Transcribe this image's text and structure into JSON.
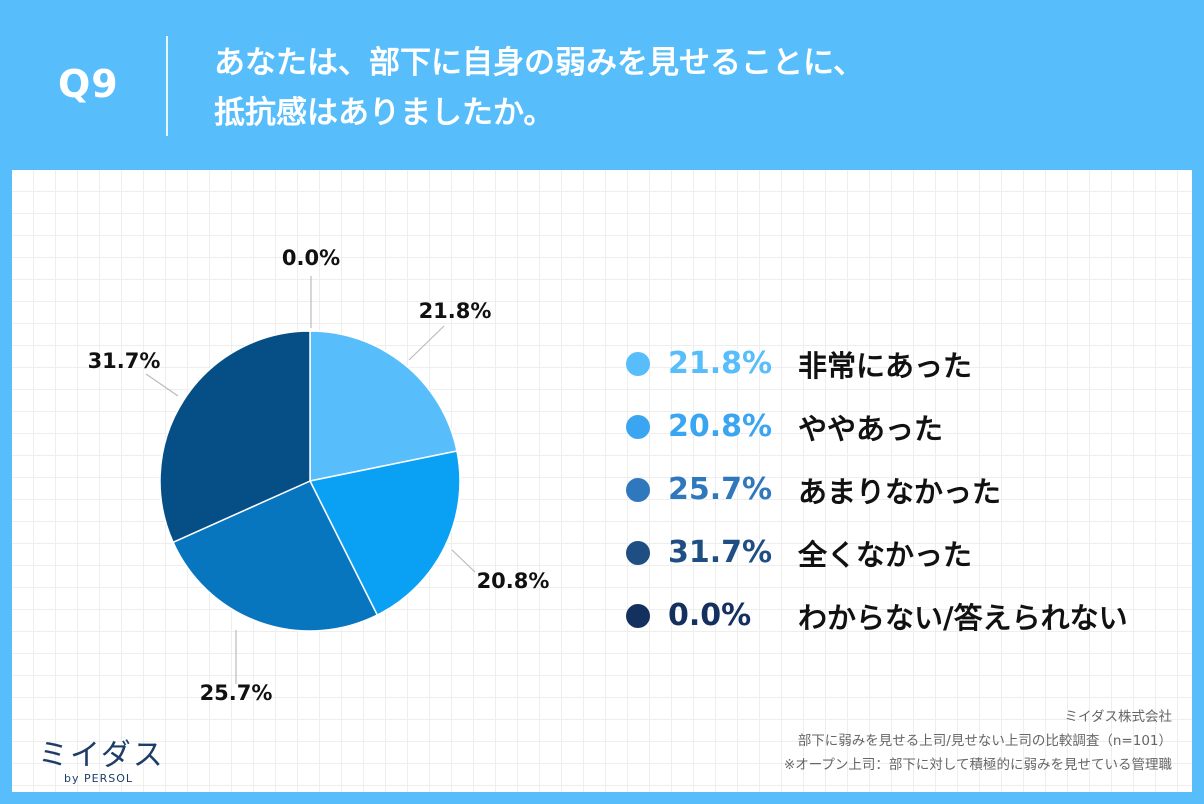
{
  "header": {
    "question_no": "Q9",
    "title_line1": "あなたは、部下に自身の弱みを見せることに、",
    "title_line2": "抵抗感はありましたか。"
  },
  "chart_data": {
    "type": "pie",
    "categories": [
      "非常にあった",
      "ややあった",
      "あまりなかった",
      "全くなかった",
      "わからない/答えられない"
    ],
    "values": [
      21.8,
      20.8,
      25.7,
      31.7,
      0.0
    ],
    "value_labels": [
      "21.8%",
      "20.8%",
      "25.7%",
      "31.7%",
      "0.0%"
    ],
    "colors": [
      "#57BDFB",
      "#0AA1F5",
      "#0875BF",
      "#064F86",
      "#0E2E5C"
    ],
    "legend_placement": "right"
  },
  "legend": [
    {
      "pct": "21.8%",
      "label": "非常にあった",
      "color": "#57BDFB"
    },
    {
      "pct": "20.8%",
      "label": "ややあった",
      "color": "#3AA6F2"
    },
    {
      "pct": "25.7%",
      "label": "あまりなかった",
      "color": "#2F78BE"
    },
    {
      "pct": "31.7%",
      "label": "全くなかった",
      "color": "#1E4E82"
    },
    {
      "pct": "0.0%",
      "label": "わからない/答えられない",
      "color": "#14305E"
    }
  ],
  "logo": {
    "main": "ミイダス",
    "sub": "by PERSOL"
  },
  "footer": {
    "line1": "ミイダス株式会社",
    "line2": "部下に弱みを見せる上司/見せない上司の比較調査（n=101）",
    "line3": "※オープン上司：部下に対して積極的に弱みを見せている管理職"
  }
}
